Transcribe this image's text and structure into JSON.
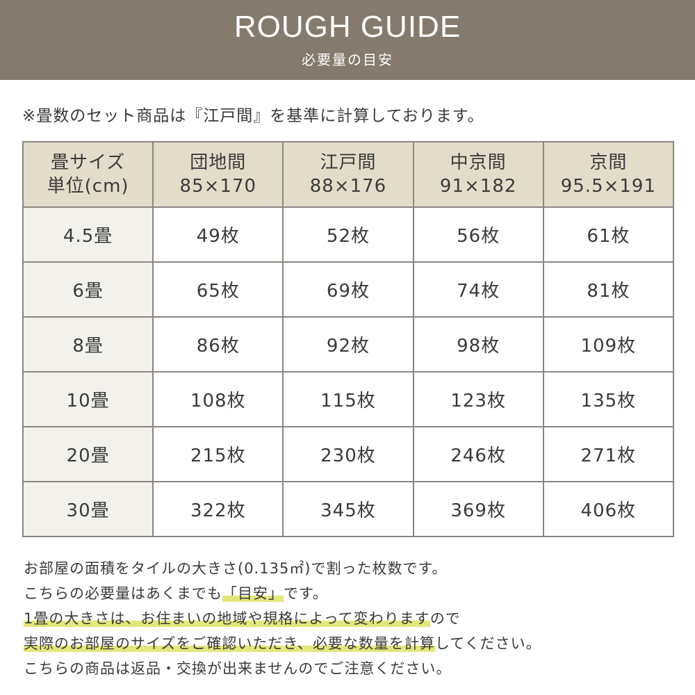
{
  "header": {
    "title": "ROUGH GUIDE",
    "subtitle": "必要量の目安"
  },
  "note": "※畳数のセット商品は『江戸間』を基準に計算しております。",
  "table": {
    "headers": [
      [
        "畳サイズ",
        "単位(cm)"
      ],
      [
        "団地間",
        "85×170"
      ],
      [
        "江戸間",
        "88×176"
      ],
      [
        "中京間",
        "91×182"
      ],
      [
        "京間",
        "95.5×191"
      ]
    ],
    "rows": [
      [
        "4.5畳",
        "49枚",
        "52枚",
        "56枚",
        "61枚"
      ],
      [
        "6畳",
        "65枚",
        "69枚",
        "74枚",
        "81枚"
      ],
      [
        "8畳",
        "86枚",
        "92枚",
        "98枚",
        "109枚"
      ],
      [
        "10畳",
        "108枚",
        "115枚",
        "123枚",
        "135枚"
      ],
      [
        "20畳",
        "215枚",
        "230枚",
        "246枚",
        "271枚"
      ],
      [
        "30畳",
        "322枚",
        "345枚",
        "369枚",
        "406枚"
      ]
    ]
  },
  "footer": [
    {
      "a": "お部屋の面積をタイルの大きさ(0.135㎡)で割った枚数です。",
      "h": "",
      "b": ""
    },
    {
      "a": "こちらの必要量はあくまでも",
      "h": "「目安」",
      "b": "です。"
    },
    {
      "a": "",
      "h": "1畳の大きさは、お住まいの地域や規格によって変わります",
      "b": "ので"
    },
    {
      "a": "",
      "h": "実際のお部屋のサイズをご確認いただき、必要な数量を計算",
      "b": "してください。"
    },
    {
      "a": "こちらの商品は返品・交換が出来ませんのでご注意ください。",
      "h": "",
      "b": ""
    }
  ],
  "colors": {
    "banner": "#847a6d",
    "header_cell": "#e4dccb",
    "row_header_cell": "#f3f1ec",
    "highlight": "#e3e67a"
  }
}
